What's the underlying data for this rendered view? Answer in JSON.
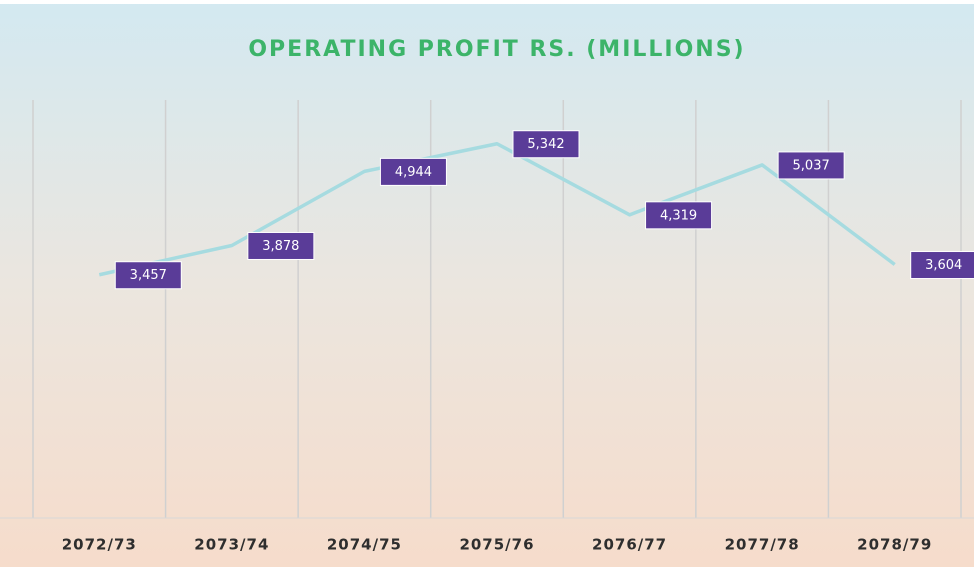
{
  "chart_data": {
    "type": "line",
    "title": "OPERATING PROFIT RS. (MILLIONS)",
    "categories": [
      "2072/73",
      "2073/74",
      "2074/75",
      "2075/76",
      "2076/77",
      "2077/78",
      "2078/79"
    ],
    "values": [
      3457,
      3878,
      4944,
      5342,
      4319,
      5037,
      3604
    ],
    "value_labels": [
      "3,457",
      "3,878",
      "4,944",
      "5,342",
      "4,319",
      "5,037",
      "3,604"
    ],
    "color": "#a6dbe0",
    "label_color": "#5a3c98",
    "ylim": [
      0,
      6000
    ]
  }
}
